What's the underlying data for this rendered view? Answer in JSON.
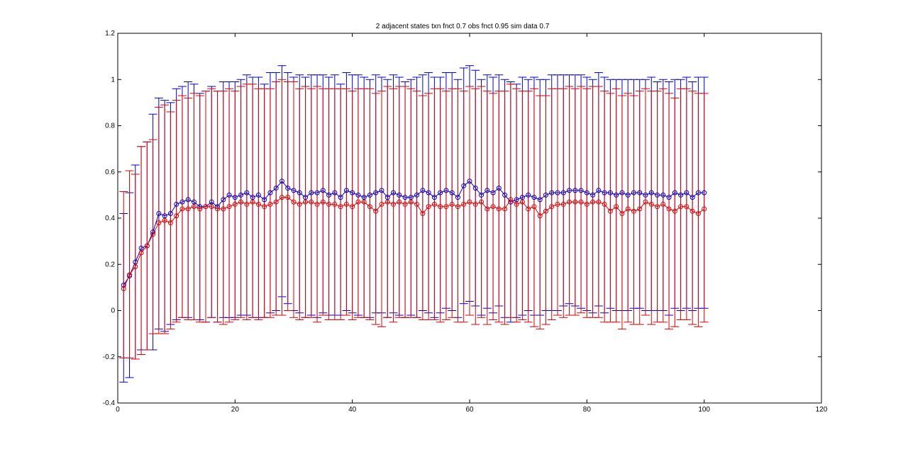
{
  "chart_data": {
    "type": "line",
    "title": "2 adjacent states txn fnct 0.7 obs fnct 0.95 sim data 0.7",
    "xlabel": "",
    "ylabel": "",
    "xlim": [
      0,
      120
    ],
    "ylim": [
      -0.4,
      1.2
    ],
    "xticks": [
      0,
      20,
      40,
      60,
      80,
      100,
      120
    ],
    "yticks": [
      -0.4,
      -0.2,
      0,
      0.2,
      0.4,
      0.6,
      0.8,
      1,
      1.2
    ],
    "xtick_labels": [
      "0",
      "20",
      "40",
      "60",
      "80",
      "100",
      "120"
    ],
    "ytick_labels": [
      "-0.4",
      "-0.2",
      "0",
      "0.2",
      "0.4",
      "0.6",
      "0.8",
      "1",
      "1.2"
    ],
    "grid": false,
    "x": [
      1,
      2,
      3,
      4,
      5,
      6,
      7,
      8,
      9,
      10,
      11,
      12,
      13,
      14,
      15,
      16,
      17,
      18,
      19,
      20,
      21,
      22,
      23,
      24,
      25,
      26,
      27,
      28,
      29,
      30,
      31,
      32,
      33,
      34,
      35,
      36,
      37,
      38,
      39,
      40,
      41,
      42,
      43,
      44,
      45,
      46,
      47,
      48,
      49,
      50,
      51,
      52,
      53,
      54,
      55,
      56,
      57,
      58,
      59,
      60,
      61,
      62,
      63,
      64,
      65,
      66,
      67,
      68,
      69,
      70,
      71,
      72,
      73,
      74,
      75,
      76,
      77,
      78,
      79,
      80,
      81,
      82,
      83,
      84,
      85,
      86,
      87,
      88,
      89,
      90,
      91,
      92,
      93,
      94,
      95,
      96,
      97,
      98,
      99,
      100
    ],
    "series": [
      {
        "color": "#0000cc",
        "marker": "circle",
        "values": [
          0.11,
          0.15,
          0.21,
          0.27,
          0.28,
          0.34,
          0.42,
          0.41,
          0.42,
          0.46,
          0.47,
          0.48,
          0.47,
          0.45,
          0.45,
          0.47,
          0.45,
          0.48,
          0.5,
          0.49,
          0.5,
          0.51,
          0.49,
          0.5,
          0.48,
          0.51,
          0.53,
          0.56,
          0.53,
          0.52,
          0.51,
          0.49,
          0.51,
          0.51,
          0.52,
          0.5,
          0.51,
          0.49,
          0.52,
          0.51,
          0.5,
          0.49,
          0.5,
          0.51,
          0.52,
          0.49,
          0.51,
          0.5,
          0.49,
          0.49,
          0.5,
          0.52,
          0.51,
          0.49,
          0.51,
          0.52,
          0.51,
          0.49,
          0.54,
          0.56,
          0.53,
          0.5,
          0.52,
          0.51,
          0.53,
          0.5,
          0.47,
          0.48,
          0.49,
          0.5,
          0.49,
          0.48,
          0.5,
          0.51,
          0.51,
          0.51,
          0.52,
          0.52,
          0.52,
          0.51,
          0.5,
          0.52,
          0.51,
          0.51,
          0.5,
          0.51,
          0.5,
          0.51,
          0.51,
          0.5,
          0.51,
          0.5,
          0.5,
          0.49,
          0.51,
          0.5,
          0.51,
          0.49,
          0.51,
          0.51
        ],
        "err_low": [
          0.42,
          0.44,
          0.42,
          0.44,
          0.45,
          0.51,
          0.5,
          0.5,
          0.48,
          0.5,
          0.5,
          0.51,
          0.51,
          0.49,
          0.5,
          0.5,
          0.5,
          0.51,
          0.53,
          0.52,
          0.52,
          0.53,
          0.52,
          0.53,
          0.51,
          0.52,
          0.53,
          0.5,
          0.5,
          0.52,
          0.52,
          0.52,
          0.53,
          0.54,
          0.53,
          0.52,
          0.53,
          0.51,
          0.52,
          0.52,
          0.52,
          0.52,
          0.53,
          0.52,
          0.53,
          0.52,
          0.52,
          0.52,
          0.52,
          0.51,
          0.53,
          0.52,
          0.52,
          0.52,
          0.52,
          0.51,
          0.51,
          0.52,
          0.51,
          0.52,
          0.51,
          0.52,
          0.51,
          0.52,
          0.51,
          0.53,
          0.52,
          0.51,
          0.51,
          0.5,
          0.51,
          0.5,
          0.5,
          0.51,
          0.51,
          0.49,
          0.49,
          0.5,
          0.51,
          0.51,
          0.51,
          0.5,
          0.52,
          0.5,
          0.5,
          0.51,
          0.5,
          0.5,
          0.5,
          0.5,
          0.51,
          0.5,
          0.5,
          0.51,
          0.5,
          0.5,
          0.5,
          0.49,
          0.5,
          0.5
        ],
        "err_high": [
          0.31,
          0.36,
          0.42,
          0.44,
          0.45,
          0.51,
          0.5,
          0.5,
          0.48,
          0.5,
          0.5,
          0.51,
          0.51,
          0.49,
          0.5,
          0.5,
          0.5,
          0.51,
          0.49,
          0.5,
          0.5,
          0.51,
          0.52,
          0.51,
          0.5,
          0.52,
          0.5,
          0.5,
          0.5,
          0.49,
          0.51,
          0.52,
          0.51,
          0.51,
          0.5,
          0.51,
          0.51,
          0.49,
          0.51,
          0.51,
          0.52,
          0.52,
          0.5,
          0.51,
          0.49,
          0.51,
          0.51,
          0.51,
          0.5,
          0.51,
          0.51,
          0.5,
          0.52,
          0.52,
          0.5,
          0.51,
          0.52,
          0.51,
          0.51,
          0.5,
          0.51,
          0.5,
          0.5,
          0.5,
          0.49,
          0.5,
          0.52,
          0.5,
          0.52,
          0.5,
          0.52,
          0.52,
          0.5,
          0.51,
          0.51,
          0.51,
          0.5,
          0.5,
          0.5,
          0.5,
          0.5,
          0.51,
          0.5,
          0.49,
          0.5,
          0.49,
          0.5,
          0.49,
          0.49,
          0.5,
          0.5,
          0.49,
          0.5,
          0.5,
          0.49,
          0.5,
          0.5,
          0.5,
          0.5,
          0.5
        ]
      },
      {
        "color": "#dd0000",
        "marker": "circle",
        "values": [
          0.095,
          0.155,
          0.19,
          0.25,
          0.28,
          0.33,
          0.38,
          0.39,
          0.38,
          0.41,
          0.44,
          0.44,
          0.45,
          0.44,
          0.45,
          0.45,
          0.44,
          0.44,
          0.45,
          0.46,
          0.47,
          0.46,
          0.47,
          0.46,
          0.45,
          0.46,
          0.47,
          0.49,
          0.49,
          0.47,
          0.46,
          0.47,
          0.47,
          0.46,
          0.47,
          0.46,
          0.46,
          0.45,
          0.46,
          0.45,
          0.47,
          0.47,
          0.45,
          0.43,
          0.46,
          0.47,
          0.46,
          0.47,
          0.46,
          0.47,
          0.46,
          0.42,
          0.45,
          0.46,
          0.45,
          0.45,
          0.46,
          0.45,
          0.46,
          0.47,
          0.46,
          0.47,
          0.44,
          0.45,
          0.44,
          0.44,
          0.48,
          0.46,
          0.47,
          0.44,
          0.45,
          0.41,
          0.43,
          0.45,
          0.46,
          0.46,
          0.47,
          0.47,
          0.47,
          0.46,
          0.47,
          0.47,
          0.46,
          0.43,
          0.45,
          0.42,
          0.44,
          0.43,
          0.44,
          0.47,
          0.46,
          0.45,
          0.46,
          0.44,
          0.43,
          0.45,
          0.45,
          0.43,
          0.42,
          0.44
        ],
        "err_low": [
          0.3,
          0.36,
          0.4,
          0.44,
          0.45,
          0.43,
          0.48,
          0.49,
          0.46,
          0.46,
          0.47,
          0.48,
          0.49,
          0.49,
          0.5,
          0.48,
          0.49,
          0.5,
          0.5,
          0.5,
          0.5,
          0.5,
          0.5,
          0.5,
          0.48,
          0.49,
          0.49,
          0.51,
          0.49,
          0.5,
          0.5,
          0.5,
          0.5,
          0.51,
          0.49,
          0.5,
          0.5,
          0.49,
          0.48,
          0.49,
          0.5,
          0.5,
          0.49,
          0.49,
          0.53,
          0.5,
          0.51,
          0.5,
          0.49,
          0.5,
          0.49,
          0.46,
          0.49,
          0.5,
          0.5,
          0.49,
          0.49,
          0.5,
          0.51,
          0.49,
          0.52,
          0.5,
          0.5,
          0.49,
          0.49,
          0.5,
          0.51,
          0.51,
          0.51,
          0.49,
          0.52,
          0.49,
          0.49,
          0.49,
          0.48,
          0.49,
          0.49,
          0.49,
          0.48,
          0.49,
          0.5,
          0.5,
          0.51,
          0.48,
          0.5,
          0.5,
          0.49,
          0.49,
          0.5,
          0.49,
          0.52,
          0.5,
          0.51,
          0.52,
          0.5,
          0.49,
          0.49,
          0.49,
          0.49,
          0.49
        ],
        "err_high": [
          0.42,
          0.45,
          0.4,
          0.46,
          0.45,
          0.41,
          0.5,
          0.5,
          0.48,
          0.5,
          0.49,
          0.48,
          0.49,
          0.49,
          0.5,
          0.51,
          0.51,
          0.51,
          0.51,
          0.49,
          0.5,
          0.52,
          0.51,
          0.5,
          0.51,
          0.5,
          0.52,
          0.51,
          0.5,
          0.52,
          0.5,
          0.5,
          0.49,
          0.51,
          0.49,
          0.5,
          0.5,
          0.51,
          0.5,
          0.5,
          0.49,
          0.49,
          0.51,
          0.51,
          0.49,
          0.5,
          0.5,
          0.5,
          0.51,
          0.49,
          0.49,
          0.51,
          0.49,
          0.5,
          0.51,
          0.5,
          0.5,
          0.51,
          0.49,
          0.5,
          0.5,
          0.5,
          0.51,
          0.49,
          0.51,
          0.51,
          0.5,
          0.5,
          0.48,
          0.51,
          0.51,
          0.52,
          0.5,
          0.51,
          0.5,
          0.5,
          0.5,
          0.49,
          0.5,
          0.5,
          0.5,
          0.5,
          0.49,
          0.51,
          0.51,
          0.51,
          0.5,
          0.5,
          0.51,
          0.49,
          0.49,
          0.5,
          0.5,
          0.5,
          0.49,
          0.51,
          0.51,
          0.52,
          0.52,
          0.5
        ]
      }
    ]
  }
}
